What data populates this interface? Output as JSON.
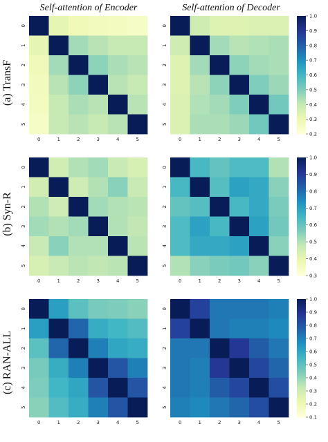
{
  "chart_data": {
    "type": "heatmap",
    "column_titles": [
      "Self-attention of Encoder",
      "Self-attention of Decoder"
    ],
    "row_labels": [
      "(a) TransF",
      "(b) Syn-R",
      "(c) RAN-ALL"
    ],
    "tick_labels": [
      "0",
      "1",
      "2",
      "3",
      "4",
      "5"
    ],
    "colormap": "YlGnBu",
    "colorbars": [
      {
        "vmin": 0.2,
        "vmax": 1.0,
        "ticks": [
          "0.2",
          "0.3",
          "0.4",
          "0.5",
          "0.6",
          "0.7",
          "0.8",
          "0.9",
          "1.0"
        ]
      },
      {
        "vmin": 0.3,
        "vmax": 1.0,
        "ticks": [
          "0.3",
          "0.4",
          "0.5",
          "0.6",
          "0.7",
          "0.8",
          "0.9",
          "1.0"
        ]
      },
      {
        "vmin": 0.1,
        "vmax": 1.0,
        "ticks": [
          "0.1",
          "0.2",
          "0.3",
          "0.4",
          "0.5",
          "0.6",
          "0.7",
          "0.8",
          "0.9",
          "1.0"
        ]
      }
    ],
    "panels": [
      {
        "row": 0,
        "col": 0,
        "values": [
          [
            1.0,
            0.32,
            0.28,
            0.27,
            0.26,
            0.25
          ],
          [
            0.32,
            1.0,
            0.45,
            0.42,
            0.4,
            0.4
          ],
          [
            0.28,
            0.45,
            1.0,
            0.48,
            0.44,
            0.42
          ],
          [
            0.27,
            0.42,
            0.48,
            1.0,
            0.42,
            0.4
          ],
          [
            0.26,
            0.4,
            0.44,
            0.42,
            1.0,
            0.42
          ],
          [
            0.25,
            0.4,
            0.42,
            0.4,
            0.42,
            1.0
          ]
        ]
      },
      {
        "row": 0,
        "col": 1,
        "values": [
          [
            1.0,
            0.38,
            0.34,
            0.34,
            0.35,
            0.35
          ],
          [
            0.38,
            1.0,
            0.45,
            0.42,
            0.43,
            0.44
          ],
          [
            0.34,
            0.45,
            1.0,
            0.48,
            0.45,
            0.44
          ],
          [
            0.34,
            0.42,
            0.48,
            1.0,
            0.5,
            0.46
          ],
          [
            0.35,
            0.43,
            0.45,
            0.5,
            1.0,
            0.52
          ],
          [
            0.35,
            0.44,
            0.44,
            0.46,
            0.52,
            1.0
          ]
        ]
      },
      {
        "row": 1,
        "col": 0,
        "values": [
          [
            1.0,
            0.45,
            0.5,
            0.52,
            0.47,
            0.44
          ],
          [
            0.45,
            1.0,
            0.46,
            0.5,
            0.55,
            0.47
          ],
          [
            0.5,
            0.46,
            1.0,
            0.52,
            0.5,
            0.49
          ],
          [
            0.52,
            0.5,
            0.52,
            1.0,
            0.5,
            0.48
          ],
          [
            0.47,
            0.55,
            0.5,
            0.5,
            1.0,
            0.49
          ],
          [
            0.44,
            0.47,
            0.49,
            0.48,
            0.49,
            1.0
          ]
        ]
      },
      {
        "row": 1,
        "col": 1,
        "values": [
          [
            1.0,
            0.64,
            0.6,
            0.63,
            0.63,
            0.5
          ],
          [
            0.64,
            1.0,
            0.62,
            0.7,
            0.68,
            0.55
          ],
          [
            0.6,
            0.62,
            1.0,
            0.64,
            0.68,
            0.57
          ],
          [
            0.63,
            0.7,
            0.64,
            1.0,
            0.7,
            0.58
          ],
          [
            0.63,
            0.68,
            0.68,
            0.7,
            1.0,
            0.55
          ],
          [
            0.5,
            0.55,
            0.57,
            0.58,
            0.55,
            1.0
          ]
        ]
      },
      {
        "row": 2,
        "col": 0,
        "values": [
          [
            1.0,
            0.62,
            0.5,
            0.45,
            0.44,
            0.42
          ],
          [
            0.62,
            1.0,
            0.76,
            0.58,
            0.55,
            0.52
          ],
          [
            0.5,
            0.76,
            1.0,
            0.7,
            0.6,
            0.58
          ],
          [
            0.45,
            0.58,
            0.7,
            1.0,
            0.8,
            0.7
          ],
          [
            0.44,
            0.55,
            0.6,
            0.8,
            1.0,
            0.8
          ],
          [
            0.42,
            0.52,
            0.58,
            0.7,
            0.8,
            1.0
          ]
        ]
      },
      {
        "row": 2,
        "col": 1,
        "values": [
          [
            1.0,
            0.85,
            0.72,
            0.72,
            0.72,
            0.7
          ],
          [
            0.85,
            1.0,
            0.72,
            0.7,
            0.7,
            0.68
          ],
          [
            0.72,
            0.72,
            1.0,
            0.88,
            0.78,
            0.72
          ],
          [
            0.72,
            0.7,
            0.88,
            1.0,
            0.84,
            0.76
          ],
          [
            0.72,
            0.7,
            0.78,
            0.84,
            1.0,
            0.82
          ],
          [
            0.7,
            0.68,
            0.72,
            0.76,
            0.82,
            1.0
          ]
        ]
      }
    ]
  }
}
